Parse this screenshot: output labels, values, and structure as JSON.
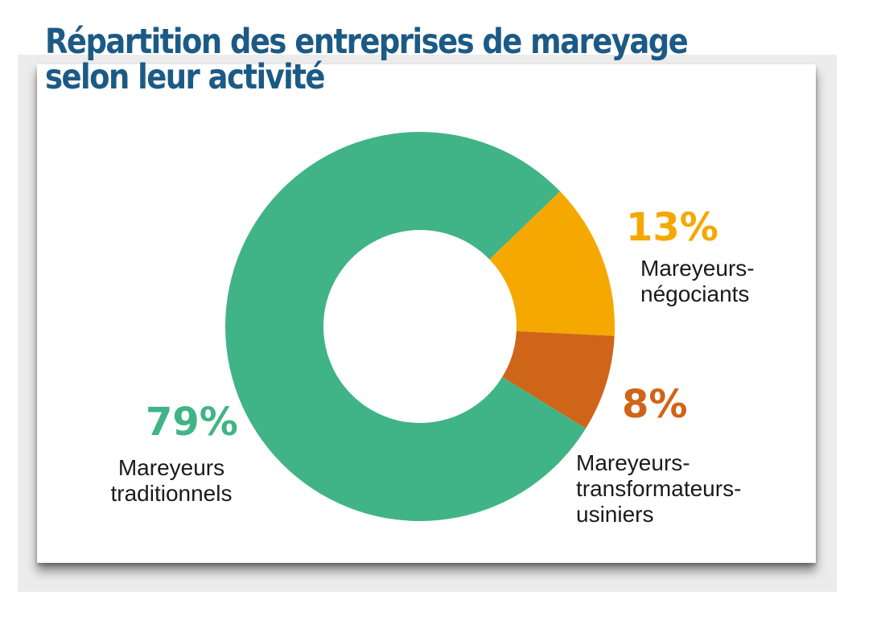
{
  "title_line1": "Répartition des entreprises de mareyage",
  "title_line2": "selon leur activité",
  "chart_data": {
    "type": "pie",
    "variant": "donut",
    "title": "Répartition des entreprises de mareyage selon leur activité",
    "unit": "%",
    "slices": [
      {
        "label_lines": [
          "Mareyeurs-",
          "négociants"
        ],
        "value": 13,
        "value_label": "13%",
        "color": "#f5a800"
      },
      {
        "label_lines": [
          "Mareyeurs-",
          "transformateurs-",
          "usiniers"
        ],
        "value": 8,
        "value_label": "8%",
        "color": "#cf6519"
      },
      {
        "label_lines": [
          "Mareyeurs",
          "traditionnels"
        ],
        "value": 79,
        "value_label": "79%",
        "color": "#40b486"
      }
    ]
  }
}
